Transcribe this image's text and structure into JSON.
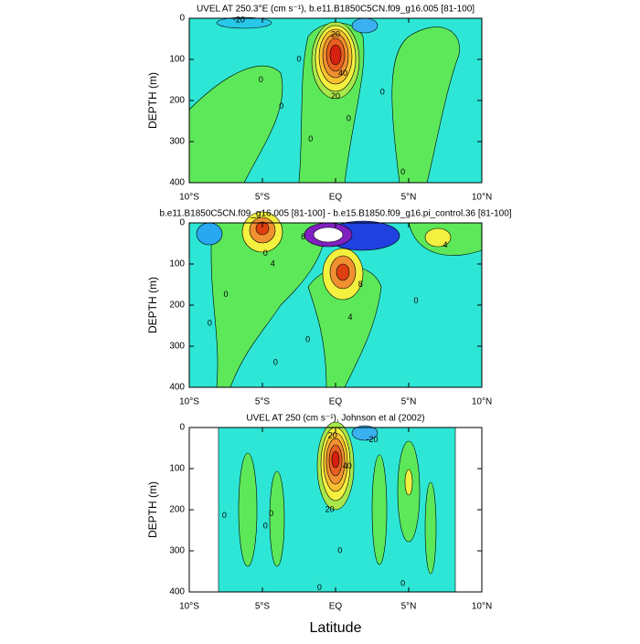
{
  "chart_data": [
    {
      "type": "contour",
      "title": "UVEL AT 250.3°E (cm s⁻¹), b.e11.B1850C5CN.f09_g16.005 [81-100]",
      "ylabel": "DEPTH (m)",
      "xlim": [
        -10,
        10
      ],
      "xticks": [
        {
          "value": -10,
          "label": "10°S"
        },
        {
          "value": -5,
          "label": "5°S"
        },
        {
          "value": 0,
          "label": "EQ"
        },
        {
          "value": 5,
          "label": "5°N"
        },
        {
          "value": 10,
          "label": "10°N"
        }
      ],
      "ylim": [
        400,
        0
      ],
      "yticks": [
        0,
        100,
        200,
        300,
        400
      ],
      "contour_labels": [
        -20,
        20,
        40,
        20,
        0,
        0,
        0,
        0,
        0,
        0,
        0
      ]
    },
    {
      "type": "contour",
      "title": "b.e11.B1850C5CN.f09_g16.005 [81-100] - b.e15.B1850.f09_g16.pi_control.36 [81-100]",
      "ylabel": "DEPTH (m)",
      "xlim": [
        -10,
        10
      ],
      "xticks": [
        {
          "value": -10,
          "label": "10°S"
        },
        {
          "value": -5,
          "label": "5°S"
        },
        {
          "value": 0,
          "label": "EQ"
        },
        {
          "value": 5,
          "label": "5°N"
        },
        {
          "value": 10,
          "label": "10°N"
        }
      ],
      "ylim": [
        400,
        0
      ],
      "yticks": [
        0,
        100,
        200,
        300,
        400
      ],
      "contour_labels": [
        8,
        4,
        8,
        4,
        4,
        0,
        0,
        0,
        0,
        0,
        0
      ]
    },
    {
      "type": "contour",
      "title": "UVEL AT 250 (cm s⁻¹), Johnson et al (2002)",
      "ylabel": "DEPTH (m)",
      "xlabel": "Latitude",
      "xlim": [
        -10,
        10
      ],
      "xticks": [
        {
          "value": -10,
          "label": "10°S"
        },
        {
          "value": -5,
          "label": "5°S"
        },
        {
          "value": 0,
          "label": "EQ"
        },
        {
          "value": 5,
          "label": "5°N"
        },
        {
          "value": 10,
          "label": "10°N"
        }
      ],
      "ylim": [
        400,
        0
      ],
      "yticks": [
        0,
        100,
        200,
        300,
        400
      ],
      "contour_labels": [
        20,
        20,
        40,
        -20,
        0,
        0,
        0,
        0,
        0,
        0
      ]
    }
  ]
}
